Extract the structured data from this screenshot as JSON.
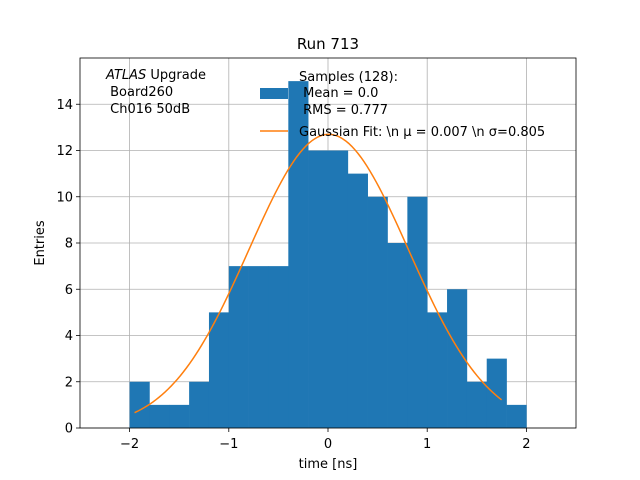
{
  "chart_data": {
    "type": "bar",
    "title": "Run 713",
    "xlabel": "time [ns]",
    "ylabel": "Entries",
    "xlim": [
      -2.5,
      2.5
    ],
    "ylim": [
      0,
      16
    ],
    "xticks": [
      -2,
      -1,
      0,
      1,
      2
    ],
    "xtick_labels": [
      "−2",
      "−1",
      "0",
      "1",
      "2"
    ],
    "yticks": [
      0,
      2,
      4,
      6,
      8,
      10,
      12,
      14
    ],
    "ytick_labels": [
      "0",
      "2",
      "4",
      "6",
      "8",
      "10",
      "12",
      "14"
    ],
    "grid": true,
    "annotation": {
      "atlas": "ATLAS",
      "line1_rest": " Upgrade",
      "line2": " Board260",
      "line3": " Ch016 50dB"
    },
    "legend": {
      "placement": "top-right",
      "histogram_label_lines": [
        "Samples (128):",
        " Mean = 0.0",
        " RMS = 0.777"
      ],
      "fit_label": "Gaussian Fit: \\n μ = 0.007 \\n σ=0.805"
    },
    "histogram": {
      "name": "Samples (128):",
      "color": "#1f77b4",
      "bin_edges": [
        -2.0,
        -1.8,
        -1.6,
        -1.4,
        -1.2,
        -1.0,
        -0.8,
        -0.6,
        -0.4,
        -0.2,
        0.0,
        0.2,
        0.4,
        0.6,
        0.8,
        1.0,
        1.2,
        1.4,
        1.6,
        1.8
      ],
      "counts": [
        2,
        1,
        1,
        2,
        5,
        7,
        7,
        7,
        15,
        12,
        12,
        11,
        10,
        8,
        10,
        5,
        6,
        2,
        3,
        1
      ]
    },
    "fit": {
      "name": "Gaussian Fit",
      "color": "#ff7f0e",
      "amplitude": 12.7,
      "mu": 0.007,
      "sigma": 0.805,
      "x_range": [
        -1.95,
        1.75
      ]
    }
  }
}
